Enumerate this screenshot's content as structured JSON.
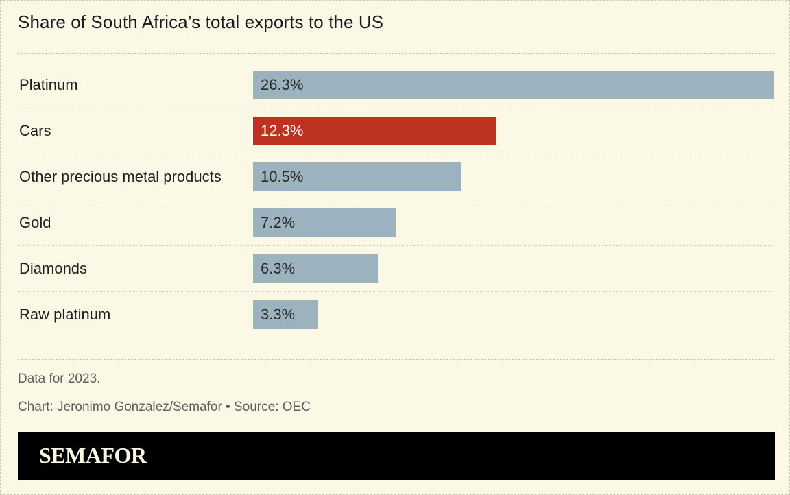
{
  "colors": {
    "background": "#fcf8e6",
    "default_bar": "#9cb2be",
    "highlight_bar": "#be3320",
    "default_label_text": "#2a2a2a",
    "highlight_label_text": "#ffffff",
    "footer_band": "#000000"
  },
  "chart_data": {
    "type": "bar",
    "orientation": "horizontal",
    "title": "Share of South Africa’s total exports to the US",
    "categories": [
      "Platinum",
      "Cars",
      "Other precious metal products",
      "Gold",
      "Diamonds",
      "Raw platinum"
    ],
    "values": [
      26.3,
      12.3,
      10.5,
      7.2,
      6.3,
      3.3
    ],
    "value_labels": [
      "26.3%",
      "12.3%",
      "10.5%",
      "7.2%",
      "6.3%",
      "3.3%"
    ],
    "highlight_category": "Cars",
    "unit": "%",
    "xlim": [
      0,
      26.3
    ],
    "grid": false,
    "legend": "none"
  },
  "notes": {
    "data_note": "Data for 2023.",
    "credit": "Chart: Jeronimo Gonzalez/Semafor • Source: OEC"
  },
  "brand": {
    "logo_text": "SEMAFOR"
  }
}
